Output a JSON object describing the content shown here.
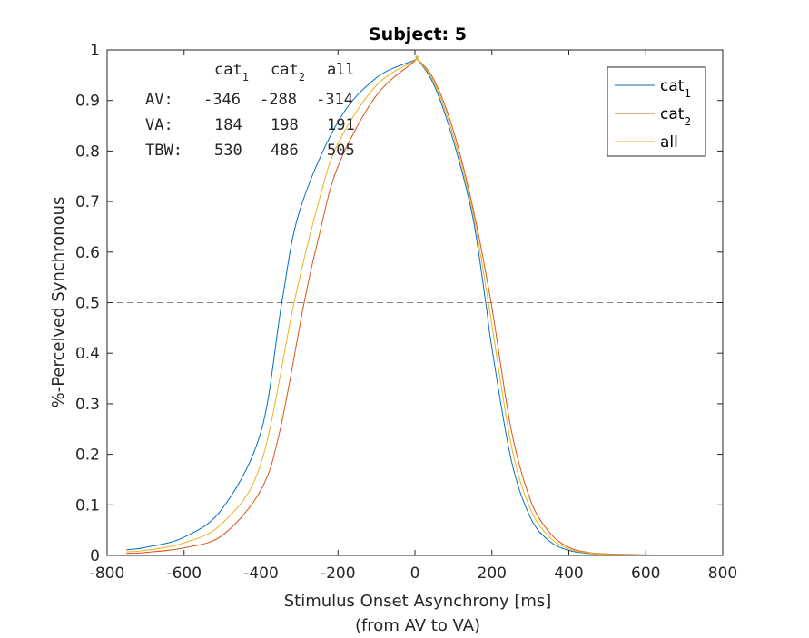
{
  "chart_data": {
    "type": "line",
    "title": "Subject: 5",
    "xlabel": "Stimulus Onset Asynchrony [ms]",
    "xlabel2": "(from AV to VA)",
    "ylabel": "%-Perceived Synchronous",
    "xlim": [
      -800,
      800
    ],
    "ylim": [
      0,
      1
    ],
    "xticks": [
      -800,
      -600,
      -400,
      -200,
      0,
      200,
      400,
      600,
      800
    ],
    "yticks": [
      0,
      0.1,
      0.2,
      0.3,
      0.4,
      0.5,
      0.6,
      0.7,
      0.8,
      0.9,
      1
    ],
    "xtick_labels": [
      "-800",
      "-600",
      "-400",
      "-200",
      "0",
      "200",
      "400",
      "600",
      "800"
    ],
    "ytick_labels": [
      "0",
      "0.1",
      "0.2",
      "0.3",
      "0.4",
      "0.5",
      "0.6",
      "0.7",
      "0.8",
      "0.9",
      "1"
    ],
    "grid": false,
    "reference_line": {
      "y": 0.5,
      "style": "dashed",
      "color": "#808080"
    },
    "legend_position": "top-right",
    "peak": {
      "x": 5,
      "y": 0.983
    },
    "series": [
      {
        "name": "cat",
        "subscript": "1",
        "color": "#0072BD",
        "av_half": -346,
        "va_half": 184,
        "points": [
          [
            -750,
            0.011
          ],
          [
            -700,
            0.016
          ],
          [
            -600,
            0.036
          ],
          [
            -500,
            0.093
          ],
          [
            -400,
            0.245
          ],
          [
            -346,
            0.5
          ],
          [
            -300,
            0.681
          ],
          [
            -200,
            0.858
          ],
          [
            -100,
            0.945
          ],
          [
            0,
            0.98
          ],
          [
            5,
            0.983
          ],
          [
            50,
            0.93
          ],
          [
            100,
            0.82
          ],
          [
            150,
            0.67
          ],
          [
            184,
            0.5
          ],
          [
            200,
            0.41
          ],
          [
            250,
            0.19
          ],
          [
            300,
            0.075
          ],
          [
            350,
            0.028
          ],
          [
            400,
            0.01
          ],
          [
            450,
            0.004
          ],
          [
            500,
            0.002
          ],
          [
            600,
            0.0005
          ],
          [
            750,
            0.0
          ]
        ]
      },
      {
        "name": "cat",
        "subscript": "2",
        "color": "#D95319",
        "av_half": -288,
        "va_half": 198,
        "points": [
          [
            -750,
            0.004
          ],
          [
            -700,
            0.006
          ],
          [
            -600,
            0.015
          ],
          [
            -500,
            0.04
          ],
          [
            -400,
            0.13
          ],
          [
            -350,
            0.25
          ],
          [
            -288,
            0.5
          ],
          [
            -250,
            0.63
          ],
          [
            -200,
            0.77
          ],
          [
            -100,
            0.91
          ],
          [
            0,
            0.978
          ],
          [
            5,
            0.983
          ],
          [
            50,
            0.94
          ],
          [
            100,
            0.84
          ],
          [
            150,
            0.69
          ],
          [
            198,
            0.5
          ],
          [
            250,
            0.25
          ],
          [
            300,
            0.11
          ],
          [
            350,
            0.045
          ],
          [
            400,
            0.016
          ],
          [
            450,
            0.006
          ],
          [
            500,
            0.003
          ],
          [
            600,
            0.001
          ],
          [
            750,
            0.0
          ]
        ]
      },
      {
        "name": "all",
        "subscript": "",
        "color": "#EDB120",
        "av_half": -314,
        "va_half": 191,
        "points": [
          [
            -750,
            0.007
          ],
          [
            -700,
            0.01
          ],
          [
            -600,
            0.025
          ],
          [
            -500,
            0.064
          ],
          [
            -400,
            0.182
          ],
          [
            -314,
            0.5
          ],
          [
            -250,
            0.7
          ],
          [
            -200,
            0.815
          ],
          [
            -100,
            0.93
          ],
          [
            0,
            0.979
          ],
          [
            5,
            0.983
          ],
          [
            50,
            0.935
          ],
          [
            100,
            0.83
          ],
          [
            150,
            0.68
          ],
          [
            191,
            0.5
          ],
          [
            250,
            0.22
          ],
          [
            300,
            0.092
          ],
          [
            350,
            0.036
          ],
          [
            400,
            0.013
          ],
          [
            450,
            0.005
          ],
          [
            500,
            0.002
          ],
          [
            600,
            0.0007
          ],
          [
            750,
            0.0
          ]
        ]
      }
    ],
    "annotation_table": {
      "headers": [
        {
          "name": "cat",
          "subscript": "1"
        },
        {
          "name": "cat",
          "subscript": "2"
        },
        {
          "name": "all",
          "subscript": ""
        }
      ],
      "rows": [
        {
          "label": "AV:",
          "values": [
            "-346",
            "-288",
            "-314"
          ]
        },
        {
          "label": "VA:",
          "values": [
            "184",
            "198",
            "191"
          ]
        },
        {
          "label": "TBW:",
          "values": [
            "530",
            "486",
            "505"
          ]
        }
      ]
    }
  }
}
